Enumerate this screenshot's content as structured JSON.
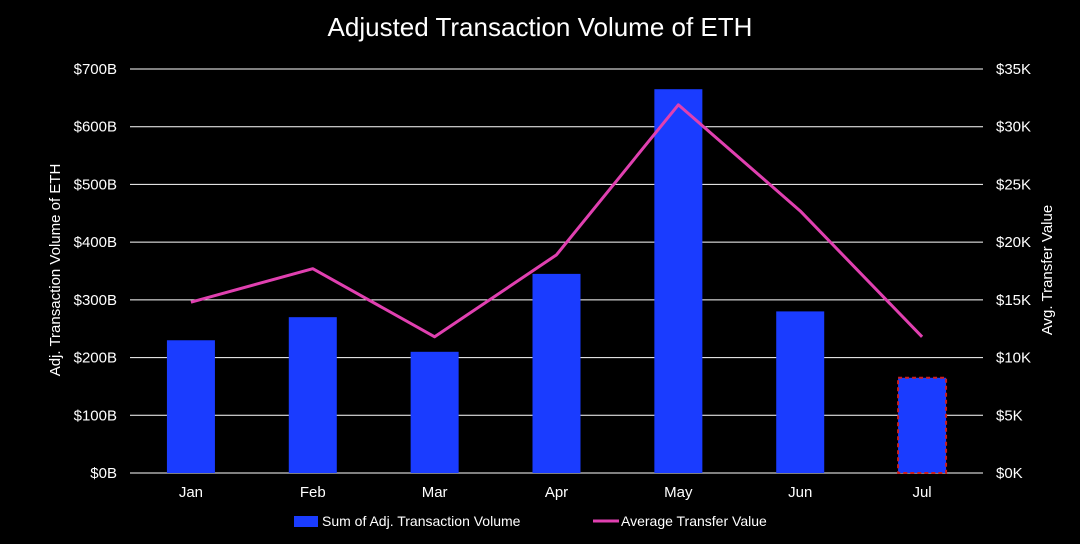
{
  "chart_data": {
    "type": "bar",
    "title": "Adjusted Transaction Volume of ETH",
    "categories": [
      "Jan",
      "Feb",
      "Mar",
      "Apr",
      "May",
      "Jun",
      "Jul"
    ],
    "series": [
      {
        "name": "Sum of Adj. Transaction Volume",
        "type": "bar",
        "axis": "left",
        "values": [
          230,
          270,
          210,
          345,
          665,
          280,
          165
        ]
      },
      {
        "name": "Average Transfer Value",
        "type": "line",
        "axis": "right",
        "values": [
          14800,
          17700,
          11800,
          18900,
          31900,
          22700,
          11800
        ]
      }
    ],
    "ylabel": "Adj. Transaction Volume of ETH",
    "ylim": [
      0,
      700
    ],
    "yticks": [
      "$0B",
      "$100B",
      "$200B",
      "$300B",
      "$400B",
      "$500B",
      "$600B",
      "$700B"
    ],
    "y2label": "Avg. Transfer Value",
    "y2lim": [
      0,
      35000
    ],
    "y2ticks": [
      "$0K",
      "$5K",
      "$10K",
      "$15K",
      "$20K",
      "$25K",
      "$30K",
      "$35K"
    ],
    "grid": true,
    "legend": "bottom",
    "highlighted_category": "Jul",
    "colors": {
      "bar": "#1a3cff",
      "line": "#e040b0",
      "highlight_border": "#cc1f1f",
      "grid": "#ffffff",
      "background": "#000000"
    }
  }
}
